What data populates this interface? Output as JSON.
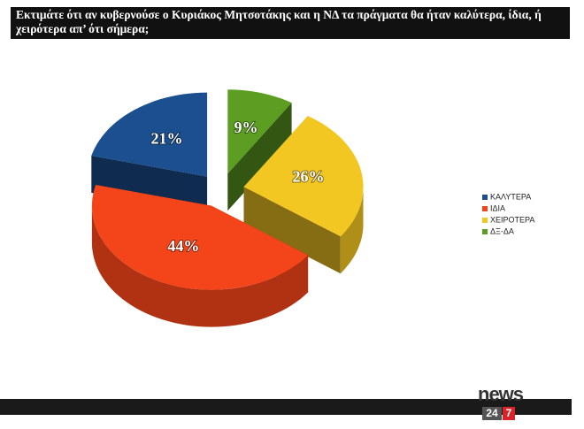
{
  "chart_data": {
    "type": "pie",
    "title": "Εκτιμάτε ότι αν κυβερνούσε ο Κυριάκος Μητσοτάκης και η ΝΔ τα πράγματα θα ήταν καλύτερα, ίδια, ή χειρότερα απ’  ότι σήμερα;",
    "categories": [
      "ΚΑΛΥΤΕΡΑ",
      "ΙΔΙΑ",
      "ΧΕΙΡΟΤΕΡΑ",
      "ΔΞ-ΔΑ"
    ],
    "values": [
      21,
      44,
      26,
      9
    ],
    "value_labels": [
      "21%",
      "44%",
      "26%",
      "9%"
    ],
    "colors": [
      "#1c4f8f",
      "#f4451a",
      "#f3c722",
      "#5c9e22"
    ],
    "legend": "right"
  },
  "logo": {
    "word": "news",
    "number": "24",
    "digit": "7"
  }
}
